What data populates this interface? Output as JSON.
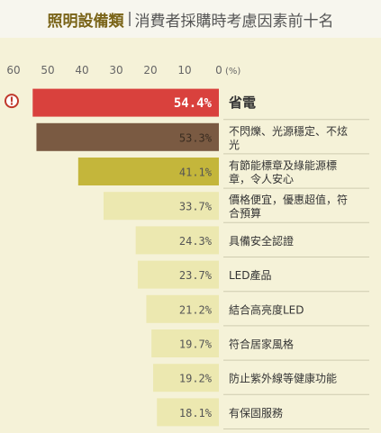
{
  "header": {
    "category": "照明設備類",
    "title": "消費者採購時考慮因素前十名"
  },
  "colors": {
    "top1": "#d9413d",
    "top2": "#7a5a42",
    "top3": "#c4b63b",
    "rest": "#ece8b0",
    "accent": "#c0392b",
    "panel": "#f5f2d8"
  },
  "icons": {
    "alert": "exclamation-circle-icon"
  },
  "chart_data": {
    "type": "bar",
    "orientation": "horizontal",
    "direction": "right-to-left",
    "title": "消費者採購時考慮因素前十名",
    "unit_label": "(%)",
    "xlim": [
      0,
      60
    ],
    "ticks": [
      60,
      50,
      40,
      30,
      20,
      10,
      0
    ],
    "categories": [
      [
        "省電"
      ],
      [
        "不閃爍、光源穩定、不炫",
        "光"
      ],
      [
        "有節能標章及綠能源標",
        "章，令人安心"
      ],
      [
        "價格便宜，優惠超值，符",
        "合預算"
      ],
      [
        "具備安全認證"
      ],
      [
        "LED產品"
      ],
      [
        "結合高亮度LED"
      ],
      [
        "符合居家風格"
      ],
      [
        "防止紫外線等健康功能"
      ],
      [
        "有保固服務"
      ]
    ],
    "values": [
      54.4,
      53.3,
      41.1,
      33.7,
      24.3,
      23.7,
      21.2,
      19.7,
      19.2,
      18.1
    ],
    "value_labels": [
      "54.4%",
      "53.3%",
      "41.1%",
      "33.7%",
      "24.3%",
      "23.7%",
      "21.2%",
      "19.7%",
      "19.2%",
      "18.1%"
    ]
  }
}
